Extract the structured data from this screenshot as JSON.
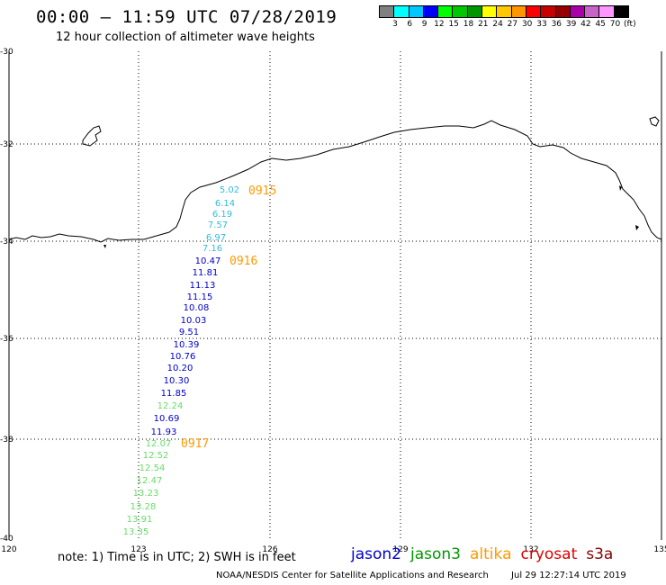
{
  "header": {
    "title": "00:00 – 11:59 UTC 07/28/2019",
    "subtitle": "12 hour collection of altimeter wave heights"
  },
  "colorbar": {
    "colors": [
      "#808080",
      "#00ffff",
      "#00c8ff",
      "#0000ff",
      "#00ff00",
      "#00c800",
      "#009600",
      "#ffff00",
      "#ffc800",
      "#ff9600",
      "#ff0000",
      "#c80000",
      "#960000",
      "#aa00aa",
      "#c864c8",
      "#ff96ff",
      "#000000"
    ],
    "labels": [
      "3",
      "6",
      "9",
      "12",
      "15",
      "18",
      "21",
      "24",
      "27",
      "30",
      "33",
      "36",
      "39",
      "42",
      "45",
      "70",
      "(ft)"
    ]
  },
  "axes": {
    "lat_labels": [
      "-30",
      "-32",
      "-34",
      "-36",
      "-38",
      "-40"
    ],
    "lon_labels": [
      "120",
      "123",
      "126",
      "129",
      "132",
      "135"
    ]
  },
  "passes": [
    {
      "time": "0915",
      "color": "#ff9900"
    },
    {
      "time": "0916",
      "color": "#ff9900"
    },
    {
      "time": "0917",
      "color": "#ff9900"
    }
  ],
  "observations": [
    {
      "value": "5.02",
      "color": "#33bbdd"
    },
    {
      "value": "6.14",
      "color": "#33bbdd"
    },
    {
      "value": "6.19",
      "color": "#33bbdd"
    },
    {
      "value": "7.57",
      "color": "#33bbdd"
    },
    {
      "value": "6.97",
      "color": "#33bbdd"
    },
    {
      "value": "7.16",
      "color": "#33bbdd"
    },
    {
      "value": "10.47",
      "color": "#0000cc"
    },
    {
      "value": "11.81",
      "color": "#0000cc"
    },
    {
      "value": "11.13",
      "color": "#0000cc"
    },
    {
      "value": "11.15",
      "color": "#0000cc"
    },
    {
      "value": "10.08",
      "color": "#0000cc"
    },
    {
      "value": "10.03",
      "color": "#0000cc"
    },
    {
      "value": "9.51",
      "color": "#0000cc"
    },
    {
      "value": "10.39",
      "color": "#0000cc"
    },
    {
      "value": "10.76",
      "color": "#0000cc"
    },
    {
      "value": "10.20",
      "color": "#0000cc"
    },
    {
      "value": "10.30",
      "color": "#0000cc"
    },
    {
      "value": "11.85",
      "color": "#0000cc"
    },
    {
      "value": "12.24",
      "color": "#66dd66"
    },
    {
      "value": "10.69",
      "color": "#0000cc"
    },
    {
      "value": "11.93",
      "color": "#0000cc"
    },
    {
      "value": "12.07",
      "color": "#66dd66"
    },
    {
      "value": "12.52",
      "color": "#66dd66"
    },
    {
      "value": "12.54",
      "color": "#66dd66"
    },
    {
      "value": "12.47",
      "color": "#66dd66"
    },
    {
      "value": "13.23",
      "color": "#66dd66"
    },
    {
      "value": "13.28",
      "color": "#66dd66"
    },
    {
      "value": "13.91",
      "color": "#66dd66"
    },
    {
      "value": "13.35",
      "color": "#66dd66"
    }
  ],
  "note": "note:  1) Time is in UTC;  2) SWH is in feet",
  "satellites": [
    {
      "name": "jason2",
      "color": "#0000cc"
    },
    {
      "name": "jason3",
      "color": "#009900"
    },
    {
      "name": "altika",
      "color": "#ff9900"
    },
    {
      "name": "cryosat",
      "color": "#dd0000"
    },
    {
      "name": "s3a",
      "color": "#880000"
    }
  ],
  "footer": {
    "credit": "NOAA/NESDIS Center for Satellite Applications and Research",
    "generated": "Jul 29 12:27:14 UTC 2019"
  }
}
